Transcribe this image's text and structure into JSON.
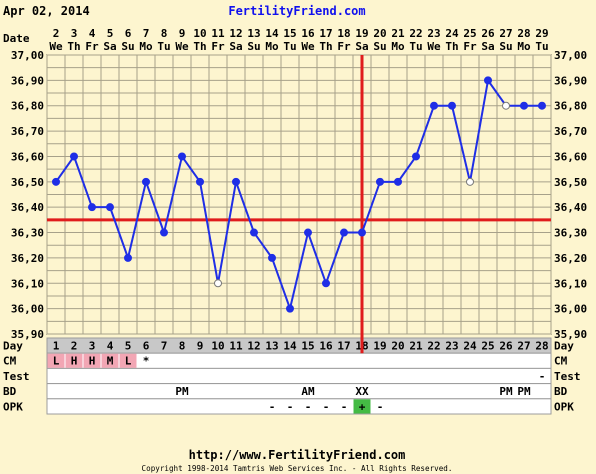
{
  "header": {
    "date": "Apr 02, 2014",
    "site": "FertilityFriend.com"
  },
  "footer": {
    "url": "http://www.FertilityFriend.com",
    "copyright": "Copyright 1998-2014 Tamtris Web Services Inc. - All Rights Reserved."
  },
  "colors": {
    "background": "#fdf5cf",
    "grid": "#a7a18a",
    "temp_line": "#1f2ee6",
    "coverline": "#e01c1c",
    "day_row_bg": "#c8c8c8",
    "cm_fill": "#f2a6b4",
    "opk_positive": "#44bb44"
  },
  "row_labels": [
    "Date",
    "Day",
    "CM",
    "Test",
    "BD",
    "OPK"
  ],
  "chart_data": {
    "type": "line",
    "title": "",
    "xlabel": "Date",
    "ylabel": "",
    "ylim": [
      35.9,
      37.0
    ],
    "y_ticks": [
      "35,90",
      "36,00",
      "36,10",
      "36,20",
      "36,30",
      "36,40",
      "36,50",
      "36,60",
      "36,70",
      "36,80",
      "36,90",
      "37,00"
    ],
    "grid": true,
    "dates": [
      "2",
      "3",
      "4",
      "5",
      "6",
      "7",
      "8",
      "9",
      "10",
      "11",
      "12",
      "13",
      "14",
      "15",
      "16",
      "17",
      "18",
      "19",
      "20",
      "21",
      "22",
      "23",
      "24",
      "25",
      "26",
      "27",
      "28",
      "29"
    ],
    "weekdays": [
      "We",
      "Th",
      "Fr",
      "Sa",
      "Su",
      "Mo",
      "Tu",
      "We",
      "Th",
      "Fr",
      "Sa",
      "Su",
      "Mo",
      "Tu",
      "We",
      "Th",
      "Fr",
      "Sa",
      "Su",
      "Mo",
      "Tu",
      "We",
      "Th",
      "Fr",
      "Sa",
      "Su",
      "Mo",
      "Tu"
    ],
    "days": [
      "1",
      "2",
      "3",
      "4",
      "5",
      "6",
      "7",
      "8",
      "9",
      "10",
      "11",
      "12",
      "13",
      "14",
      "15",
      "16",
      "17",
      "18",
      "19",
      "20",
      "21",
      "22",
      "23",
      "24",
      "25",
      "26",
      "27",
      "28"
    ],
    "series": [
      {
        "values": [
          36.5,
          36.6,
          36.4,
          36.4,
          36.2,
          36.5,
          36.3,
          36.6,
          36.5,
          36.1,
          36.5,
          36.3,
          36.2,
          36.0,
          36.3,
          36.1,
          36.3,
          36.3,
          36.5,
          36.5,
          36.6,
          36.8,
          36.8,
          36.5,
          36.9,
          36.8,
          36.8,
          36.8
        ],
        "hollow": [
          false,
          false,
          false,
          false,
          false,
          false,
          false,
          false,
          false,
          true,
          false,
          false,
          false,
          false,
          false,
          false,
          false,
          false,
          false,
          false,
          false,
          false,
          false,
          true,
          false,
          true,
          false,
          false
        ]
      }
    ],
    "coverline": 36.35,
    "ovulation_day": "18"
  },
  "observations": {
    "cm": [
      "L",
      "H",
      "H",
      "M",
      "L",
      "*",
      "",
      "",
      "",
      "",
      "",
      "",
      "",
      "",
      "",
      "",
      "",
      "",
      "",
      "",
      "",
      "",
      "",
      "",
      "",
      "",
      "",
      ""
    ],
    "test": [
      "",
      "",
      "",
      "",
      "",
      "",
      "",
      "",
      "",
      "",
      "",
      "",
      "",
      "",
      "",
      "",
      "",
      "",
      "",
      "",
      "",
      "",
      "",
      "",
      "",
      "",
      "",
      "-"
    ],
    "bd": [
      "",
      "",
      "",
      "",
      "",
      "",
      "",
      "PM",
      "",
      "",
      "",
      "",
      "",
      "",
      "AM",
      "",
      "",
      "XX",
      "",
      "",
      "",
      "",
      "",
      "",
      "",
      "PM",
      "PM",
      ""
    ],
    "opk": [
      "",
      "",
      "",
      "",
      "",
      "",
      "",
      "",
      "",
      "",
      "",
      "",
      "-",
      "-",
      "-",
      "-",
      "-",
      "+",
      "-",
      "",
      "",
      "",
      "",
      "",
      "",
      "",
      "",
      ""
    ]
  }
}
